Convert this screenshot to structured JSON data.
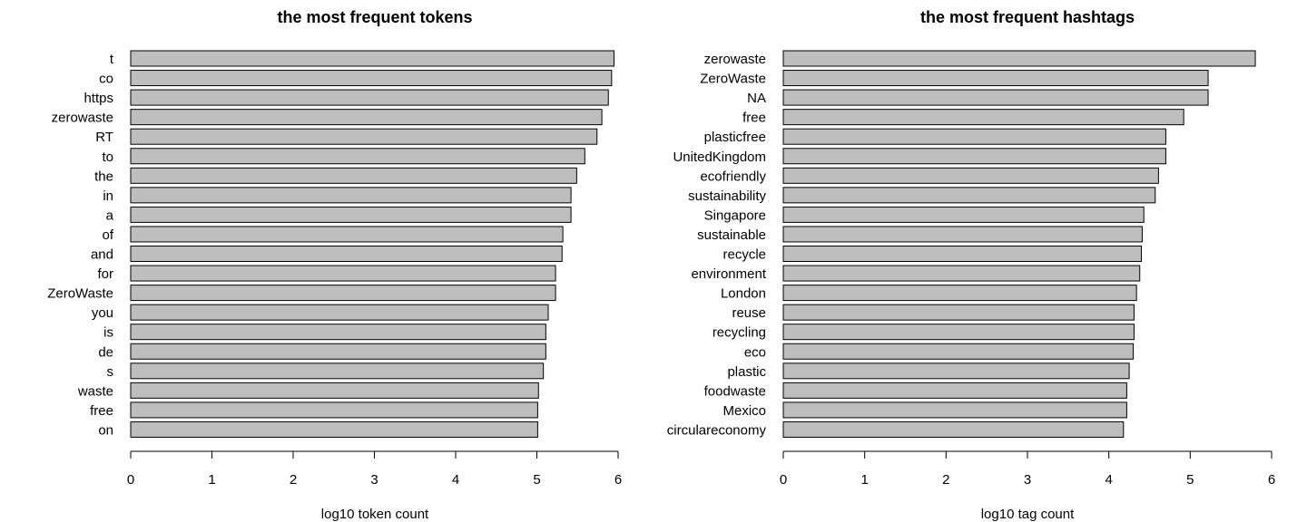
{
  "chart_data": [
    {
      "type": "bar",
      "orientation": "horizontal",
      "title": "the most frequent tokens",
      "xlabel": "log10 token count",
      "ylabel": "",
      "xlim": [
        0,
        6
      ],
      "xticks": [
        0,
        1,
        2,
        3,
        4,
        5,
        6
      ],
      "grid": false,
      "bar_color": "#bebebe",
      "categories": [
        "t",
        "co",
        "https",
        "zerowaste",
        "RT",
        "to",
        "the",
        "in",
        "a",
        "of",
        "and",
        "for",
        "ZeroWaste",
        "you",
        "is",
        "de",
        "s",
        "waste",
        "free",
        "on"
      ],
      "values": [
        5.95,
        5.92,
        5.88,
        5.8,
        5.74,
        5.59,
        5.49,
        5.42,
        5.42,
        5.32,
        5.31,
        5.23,
        5.23,
        5.14,
        5.11,
        5.11,
        5.08,
        5.02,
        5.01,
        5.01
      ]
    },
    {
      "type": "bar",
      "orientation": "horizontal",
      "title": "the most frequent hashtags",
      "xlabel": "log10 tag count",
      "ylabel": "",
      "xlim": [
        0,
        6
      ],
      "xticks": [
        0,
        1,
        2,
        3,
        4,
        5,
        6
      ],
      "grid": false,
      "bar_color": "#bebebe",
      "categories": [
        "zerowaste",
        "ZeroWaste",
        "NA",
        "free",
        "plasticfree",
        "UnitedKingdom",
        "ecofriendly",
        "sustainability",
        "Singapore",
        "sustainable",
        "recycle",
        "environment",
        "London",
        "reuse",
        "recycling",
        "eco",
        "plastic",
        "foodwaste",
        "Mexico",
        "circulareconomy"
      ],
      "values": [
        5.8,
        5.22,
        5.22,
        4.92,
        4.7,
        4.7,
        4.61,
        4.57,
        4.43,
        4.41,
        4.4,
        4.38,
        4.34,
        4.31,
        4.31,
        4.3,
        4.25,
        4.22,
        4.22,
        4.18
      ]
    }
  ]
}
